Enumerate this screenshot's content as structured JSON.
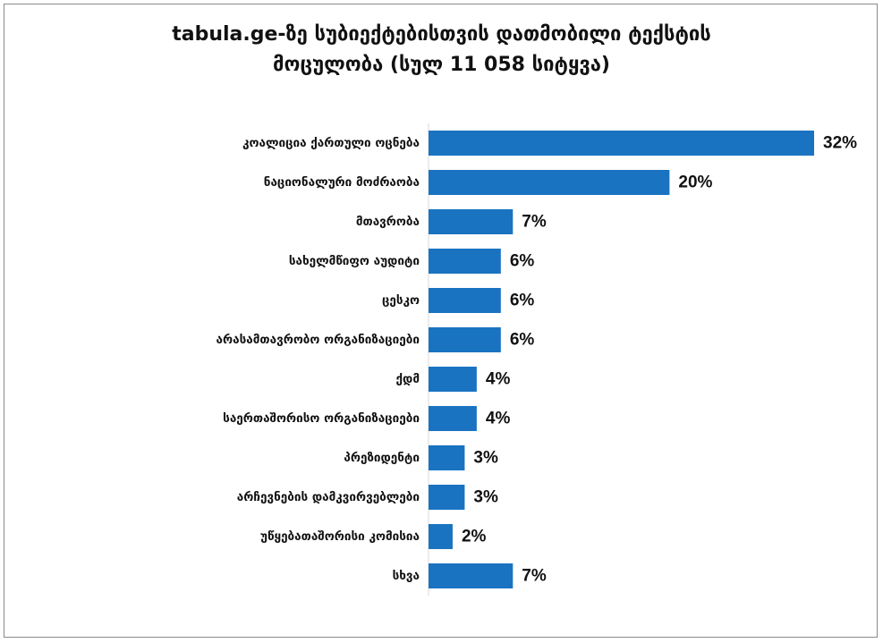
{
  "page": {
    "title_line1": "tabula.ge-ზე სუბიექტებისთვის დათმობილი ტექსტის",
    "title_line2": "მოცულობა (სულ 11 058 სიტყვა)"
  },
  "colors": {
    "bar": "#1a73c1",
    "text": "#111111",
    "border": "#8a8a8a"
  },
  "chart_data": {
    "type": "bar",
    "orientation": "horizontal",
    "title": "tabula.ge-ზე სუბიექტებისთვის დათმობილი ტექსტის მოცულობა (სულ 11 058 სიტყვა)",
    "categories": [
      "კოალიცია ქართული ოცნება",
      "ნაციონალური მოძრაობა",
      "მთავრობა",
      "სახელმწიფო აუდიტი",
      "ცესკო",
      "არასამთავრობო ორგანიზაციები",
      "ქდმ",
      "საერთაშორისო ორგანიზაციები",
      "პრეზიდენტი",
      "არჩევნების დამკვირვებლები",
      "უწყებათაშორისი კომისია",
      "სხვა"
    ],
    "values": [
      32,
      20,
      7,
      6,
      6,
      6,
      4,
      4,
      3,
      3,
      2,
      7
    ],
    "value_labels": [
      "32%",
      "20%",
      "7%",
      "6%",
      "6%",
      "6%",
      "4%",
      "4%",
      "3%",
      "3%",
      "2%",
      "7%"
    ],
    "xlim": [
      0,
      32
    ],
    "grid": false,
    "legend": "none"
  }
}
